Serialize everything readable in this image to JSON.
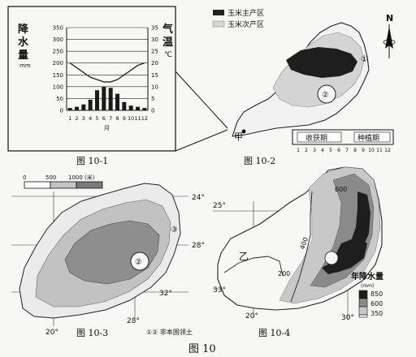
{
  "fig1": {
    "caption": "图 10-1",
    "left_axis_title": [
      "降",
      "水",
      "量"
    ],
    "left_axis_unit": "mm",
    "right_axis_title": [
      "气",
      "温"
    ],
    "right_axis_unit": "℃",
    "x_axis_title": "月",
    "left_ticks": [
      "350",
      "300",
      "250",
      "200",
      "150",
      "100",
      "50",
      "0"
    ],
    "right_ticks": [
      "35",
      "30",
      "25",
      "20",
      "15",
      "10",
      "5",
      "0"
    ],
    "months": [
      "1",
      "2",
      "3",
      "4",
      "5",
      "6",
      "7",
      "8",
      "9",
      "10",
      "11",
      "12"
    ],
    "precip_mm": [
      10,
      15,
      25,
      45,
      85,
      100,
      95,
      70,
      35,
      20,
      15,
      10
    ],
    "temp_c": [
      20,
      18,
      16,
      14,
      13,
      12,
      12,
      13,
      15,
      17,
      19,
      20
    ]
  },
  "fig2": {
    "caption": "图 10-2",
    "legend_main": "玉米主产区",
    "legend_secondary": "玉米次产区",
    "north": "N",
    "mark1": "①",
    "mark2": "②",
    "point_label": "甲",
    "bar_harvest": "收获期",
    "bar_sowing": "种植期",
    "bar_months": [
      "1",
      "2",
      "3",
      "4",
      "5",
      "6",
      "7",
      "8",
      "9",
      "10",
      "11",
      "12"
    ]
  },
  "fig3": {
    "caption": "图 10-3",
    "scale_labels": [
      "0",
      "500",
      "1000",
      "(米)"
    ],
    "lat_labels": [
      "24°",
      "28°",
      "32°"
    ],
    "lon_labels": [
      "20°",
      "28°"
    ],
    "mark1": "③",
    "mark2": "②",
    "note": "①② 非本国领土"
  },
  "fig4": {
    "caption": "图 10-4",
    "lat_labels": [
      "25°",
      "33°"
    ],
    "lon_labels": [
      "20°",
      "30°"
    ],
    "region_label": "乙",
    "isolines": [
      "600",
      "400",
      "200"
    ],
    "legend_title": "年降水量",
    "legend_unit": "(mm)",
    "legend_values": [
      "850",
      "600",
      "350"
    ]
  },
  "figure_title": "图 10",
  "colors": {
    "ink": "#111111",
    "dark_fill": "#222222",
    "mid_fill": "#8a8a8a",
    "light_fill": "#cfcfcf",
    "paper": "#f7f7f5"
  }
}
